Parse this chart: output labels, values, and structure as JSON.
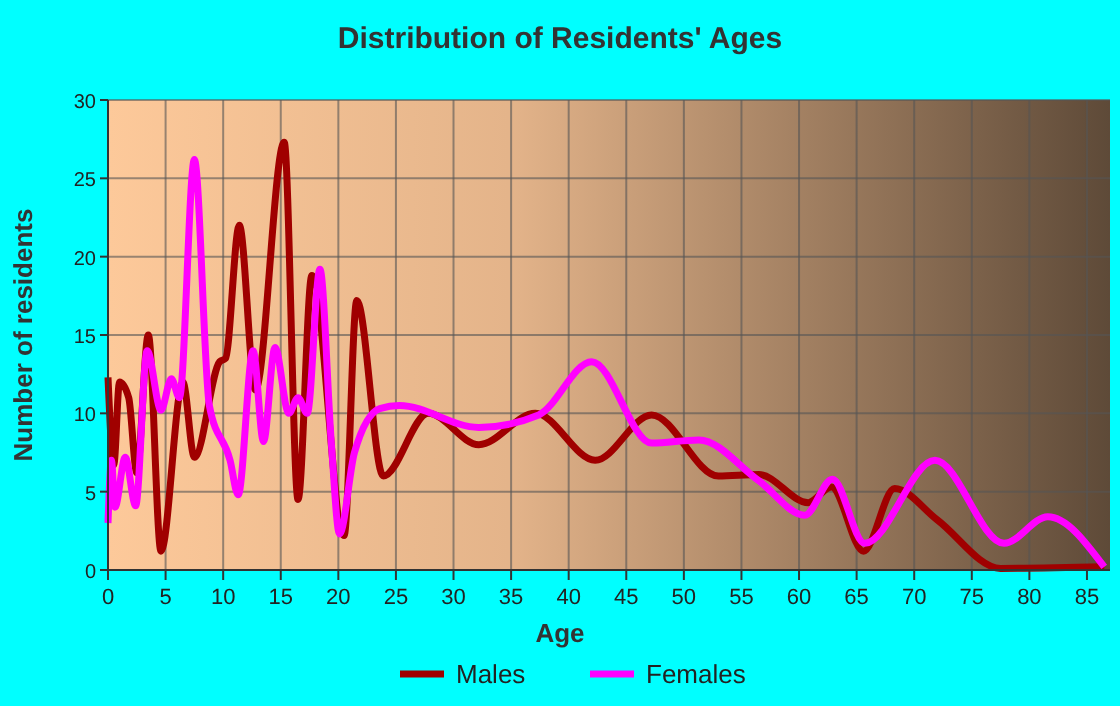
{
  "chart_data": {
    "type": "line",
    "title": "Distribution of Residents' Ages",
    "xlabel": "Age",
    "ylabel": "Number of residents",
    "xlim": [
      0,
      87
    ],
    "xticks": [
      0,
      5,
      10,
      15,
      20,
      25,
      30,
      35,
      40,
      45,
      50,
      55,
      60,
      65,
      70,
      75,
      80,
      85
    ],
    "ylim": [
      0,
      30
    ],
    "yticks": [
      0,
      5,
      10,
      15,
      20,
      25,
      30
    ],
    "grid": true,
    "legend": "bottom",
    "marker": "none",
    "line_style": "solid",
    "series": [
      {
        "name": "Males",
        "color": "#a00000",
        "x": [
          0,
          0.5,
          1,
          1.8,
          2.5,
          3.5,
          4.6,
          6.5,
          7.5,
          9.7,
          10.2,
          11.4,
          12.8,
          15.3,
          16.5,
          17.7,
          20.5,
          21.6,
          23.9,
          27.8,
          32.2,
          37.1,
          42.3,
          47.2,
          53,
          56.5,
          60.8,
          62.8,
          65.6,
          68.3,
          72,
          77.5,
          86.5
        ],
        "values": [
          12.3,
          6.7,
          12,
          11,
          6.2,
          15,
          1.2,
          12,
          7.2,
          13.3,
          13.5,
          22,
          11.5,
          27.3,
          4.5,
          18.8,
          2.2,
          17.2,
          6,
          10,
          8,
          10,
          7,
          9.9,
          6,
          6.1,
          4.3,
          5.3,
          1.2,
          5.2,
          3.2,
          0.1,
          0.2
        ]
      },
      {
        "name": "Females",
        "color": "#ff00ff",
        "x": [
          0,
          0.3,
          0.6,
          1.5,
          2.4,
          3.4,
          4.6,
          5.5,
          6.2,
          7.5,
          8.8,
          10.6,
          11.3,
          12.6,
          13.5,
          14.5,
          15.7,
          16.5,
          17.3,
          18.4,
          19.4,
          20.1,
          21.4,
          23.6,
          25.3,
          32.2,
          37.4,
          42,
          47.2,
          51.3,
          56.5,
          60.5,
          62.9,
          65.7,
          71.8,
          77.8,
          81.6,
          86.5
        ],
        "values": [
          3,
          7,
          4,
          7.2,
          4.1,
          14,
          10.2,
          12.2,
          11,
          26.2,
          10.5,
          7,
          4.8,
          14,
          8.2,
          14.2,
          10,
          11,
          10,
          19.2,
          8,
          2.3,
          7.5,
          10.3,
          10.5,
          9.1,
          9.9,
          13.3,
          8.1,
          8.3,
          5.7,
          3.5,
          5.8,
          1.7,
          7,
          1.7,
          3.4,
          0.2
        ]
      }
    ]
  }
}
